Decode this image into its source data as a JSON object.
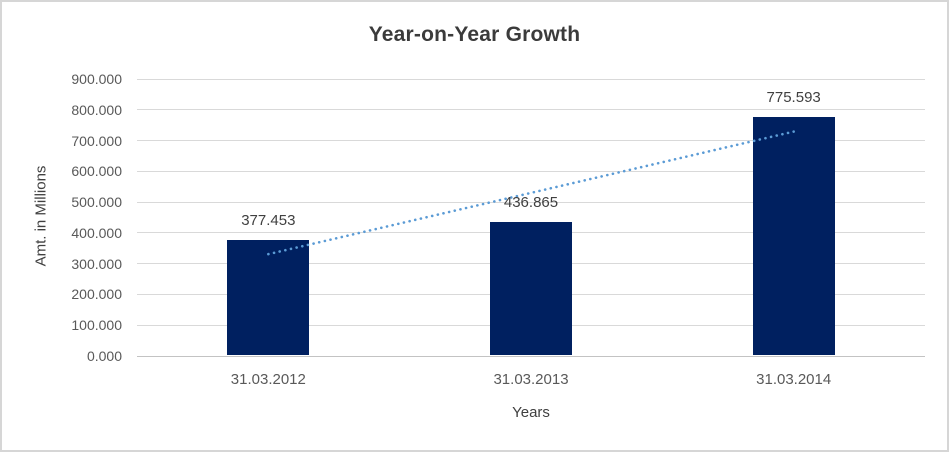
{
  "chart_data": {
    "type": "bar",
    "title": "Year-on-Year Growth",
    "xlabel": "Years",
    "ylabel": "Amt. in Millions",
    "categories": [
      "31.03.2012",
      "31.03.2013",
      "31.03.2014"
    ],
    "values": [
      377.453,
      436.865,
      775.593
    ],
    "data_labels": [
      "377.453",
      "436.865",
      "775.593"
    ],
    "ylim": [
      0,
      900
    ],
    "ytick_labels": [
      "0.000",
      "100.000",
      "200.000",
      "300.000",
      "400.000",
      "500.000",
      "600.000",
      "700.000",
      "800.000",
      "900.000"
    ],
    "grid": true,
    "legend": "none",
    "trendline": {
      "type": "linear",
      "style": "dotted"
    },
    "colors": {
      "bar": "#002060",
      "trendline": "#5b9bd5",
      "gridline": "#d9d9d9",
      "axis_line": "#c3c3c3",
      "title_text": "#3b3b3b",
      "tick_text": "#595959",
      "label_text": "#404040",
      "border": "#d6d6d6"
    }
  }
}
